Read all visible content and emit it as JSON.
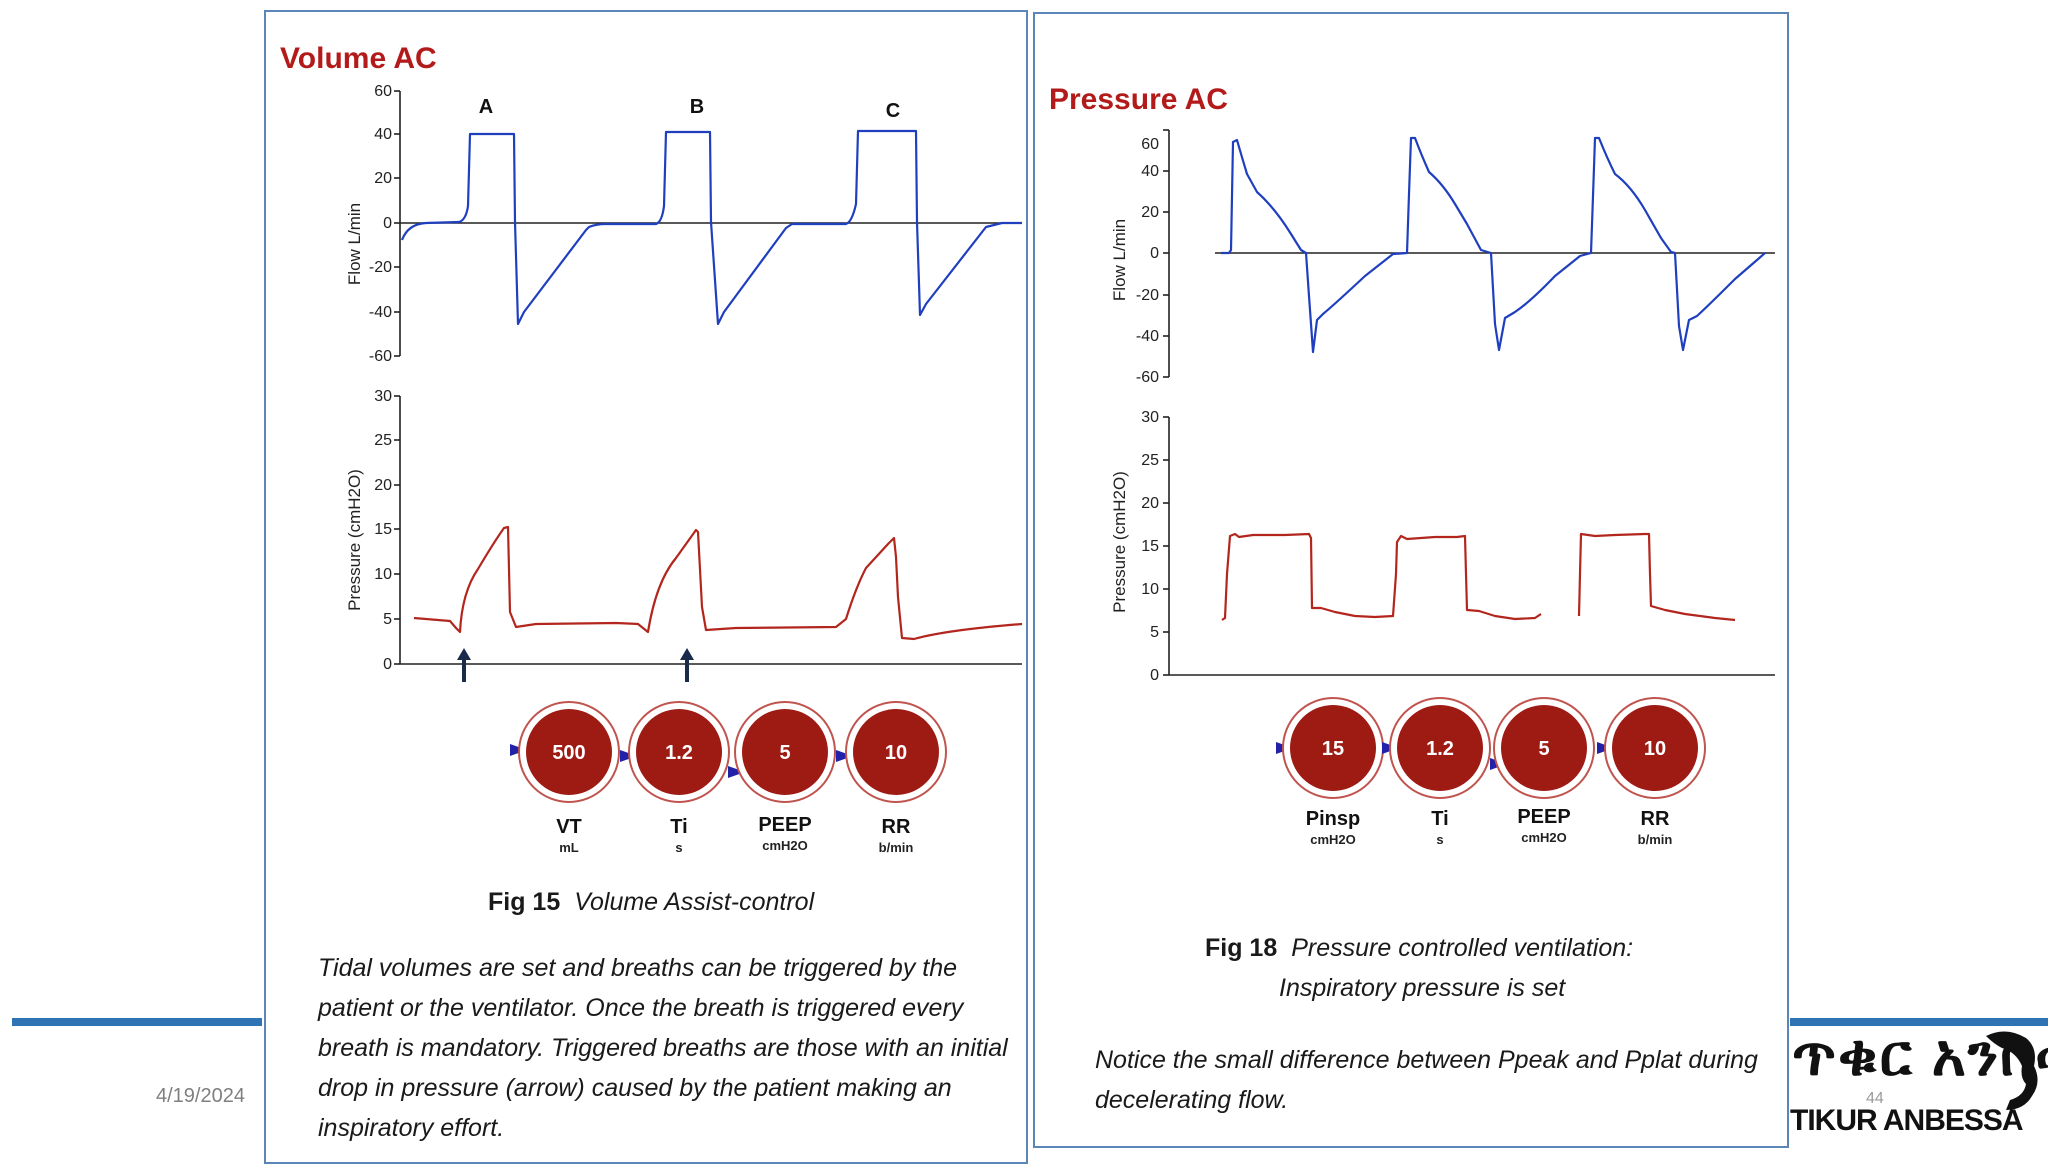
{
  "slide": {
    "date": "4/19/2024",
    "page_number": "44"
  },
  "logo": {
    "amharic_text": "ጥቁር አንበሳ",
    "latin_text": "TIKUR ANBESSA"
  },
  "left_panel": {
    "title": "Volume AC",
    "breath_labels": [
      "A",
      "B",
      "C"
    ],
    "flow_axis": {
      "label": "Flow L/min",
      "ticks": [
        "60",
        "40",
        "20",
        "0",
        "-20",
        "-40",
        "-60"
      ]
    },
    "pressure_axis": {
      "label": "Pressure (cmH2O)",
      "ticks": [
        "30",
        "25",
        "20",
        "15",
        "10",
        "5",
        "0"
      ]
    },
    "settings": [
      {
        "value": "500",
        "name": "VT",
        "unit": "mL"
      },
      {
        "value": "1.2",
        "name": "Ti",
        "unit": "s"
      },
      {
        "value": "5",
        "name": "PEEP",
        "unit": "cmH2O"
      },
      {
        "value": "10",
        "name": "RR",
        "unit": "b/min"
      }
    ],
    "fig_number": "Fig 15",
    "fig_title": "Volume Assist-control",
    "description": [
      "Tidal volumes are set and breaths can be triggered by the",
      "patient or the ventilator. Once the breath is triggered every",
      "breath is mandatory. Triggered breaths are those with an initial",
      "drop in pressure (arrow) caused by the patient making an",
      "inspiratory effort."
    ]
  },
  "right_panel": {
    "title": "Pressure AC",
    "flow_axis": {
      "label": "Flow L/min",
      "ticks": [
        "60",
        "40",
        "20",
        "0",
        "-20",
        "-40",
        "-60"
      ]
    },
    "pressure_axis": {
      "label": "Pressure (cmH2O)",
      "ticks": [
        "30",
        "25",
        "20",
        "15",
        "10",
        "5",
        "0"
      ]
    },
    "settings": [
      {
        "value": "15",
        "name": "Pinsp",
        "unit": "cmH2O"
      },
      {
        "value": "1.2",
        "name": "Ti",
        "unit": "s"
      },
      {
        "value": "5",
        "name": "PEEP",
        "unit": "cmH2O"
      },
      {
        "value": "10",
        "name": "RR",
        "unit": "b/min"
      }
    ],
    "fig_number": "Fig 18",
    "fig_title_line1": "Pressure controlled ventilation:",
    "fig_title_line2": "Inspiratory pressure is set",
    "description": [
      "Notice the small difference between Ppeak and Pplat during",
      "decelerating flow."
    ]
  },
  "colors": {
    "flow_trace": "#1f3fbf",
    "pressure_trace": "#b3261e",
    "knob": "#9e1b14",
    "panel_border": "#5b87b8",
    "accent_line": "#2e74b5"
  }
}
